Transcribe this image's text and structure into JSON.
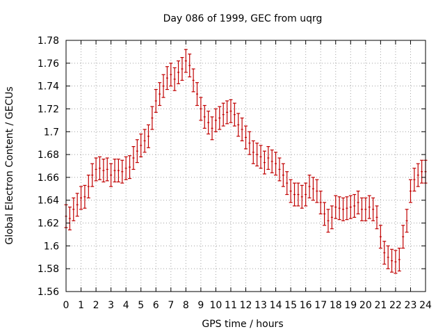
{
  "chart_data": {
    "type": "scatter",
    "title": "Day 086 of 1999, GEC from uqrg",
    "xlabel": "GPS time / hours",
    "ylabel": "Global Electron Content / GECUs",
    "xlim": [
      0,
      24
    ],
    "ylim": [
      1.56,
      1.78
    ],
    "xticks": [
      "0",
      "1",
      "2",
      "3",
      "4",
      "5",
      "6",
      "7",
      "8",
      "9",
      "10",
      "11",
      "12",
      "13",
      "14",
      "15",
      "16",
      "17",
      "18",
      "19",
      "20",
      "21",
      "22",
      "23",
      "24"
    ],
    "yticks": [
      "1.56",
      "1.58",
      "1.6",
      "1.62",
      "1.64",
      "1.66",
      "1.68",
      "1.7",
      "1.72",
      "1.74",
      "1.76",
      "1.78"
    ],
    "grid": true,
    "error_bar_halfwidth": 0.01,
    "series": [
      {
        "name": "GEC",
        "color": "#c00000",
        "x": [
          0.0,
          0.25,
          0.5,
          0.75,
          1.0,
          1.25,
          1.5,
          1.75,
          2.0,
          2.25,
          2.5,
          2.75,
          3.0,
          3.25,
          3.5,
          3.75,
          4.0,
          4.25,
          4.5,
          4.75,
          5.0,
          5.25,
          5.5,
          5.75,
          6.0,
          6.25,
          6.5,
          6.75,
          7.0,
          7.25,
          7.5,
          7.75,
          8.0,
          8.25,
          8.5,
          8.75,
          9.0,
          9.25,
          9.5,
          9.75,
          10.0,
          10.25,
          10.5,
          10.75,
          11.0,
          11.25,
          11.5,
          11.75,
          12.0,
          12.25,
          12.5,
          12.75,
          13.0,
          13.25,
          13.5,
          13.75,
          14.0,
          14.25,
          14.5,
          14.75,
          15.0,
          15.25,
          15.5,
          15.75,
          16.0,
          16.25,
          16.5,
          16.75,
          17.0,
          17.25,
          17.5,
          17.75,
          18.0,
          18.25,
          18.5,
          18.75,
          19.0,
          19.25,
          19.5,
          19.75,
          20.0,
          20.25,
          20.5,
          20.75,
          21.0,
          21.25,
          21.5,
          21.75,
          22.0,
          22.25,
          22.5,
          22.75,
          23.0,
          23.25,
          23.5,
          23.75,
          24.0
        ],
        "y": [
          1.626,
          1.624,
          1.632,
          1.636,
          1.642,
          1.643,
          1.652,
          1.662,
          1.667,
          1.668,
          1.666,
          1.667,
          1.662,
          1.666,
          1.666,
          1.665,
          1.668,
          1.669,
          1.677,
          1.683,
          1.688,
          1.692,
          1.696,
          1.712,
          1.727,
          1.733,
          1.74,
          1.747,
          1.75,
          1.746,
          1.752,
          1.755,
          1.762,
          1.758,
          1.745,
          1.733,
          1.72,
          1.713,
          1.708,
          1.703,
          1.71,
          1.712,
          1.715,
          1.717,
          1.718,
          1.715,
          1.706,
          1.702,
          1.695,
          1.69,
          1.682,
          1.68,
          1.678,
          1.673,
          1.677,
          1.674,
          1.672,
          1.667,
          1.662,
          1.655,
          1.648,
          1.645,
          1.645,
          1.643,
          1.645,
          1.652,
          1.65,
          1.648,
          1.638,
          1.628,
          1.622,
          1.625,
          1.634,
          1.633,
          1.632,
          1.633,
          1.634,
          1.635,
          1.638,
          1.632,
          1.632,
          1.634,
          1.632,
          1.625,
          1.608,
          1.594,
          1.59,
          1.587,
          1.586,
          1.588,
          1.608,
          1.622,
          1.648,
          1.658,
          1.662,
          1.665,
          1.665
        ]
      }
    ]
  }
}
